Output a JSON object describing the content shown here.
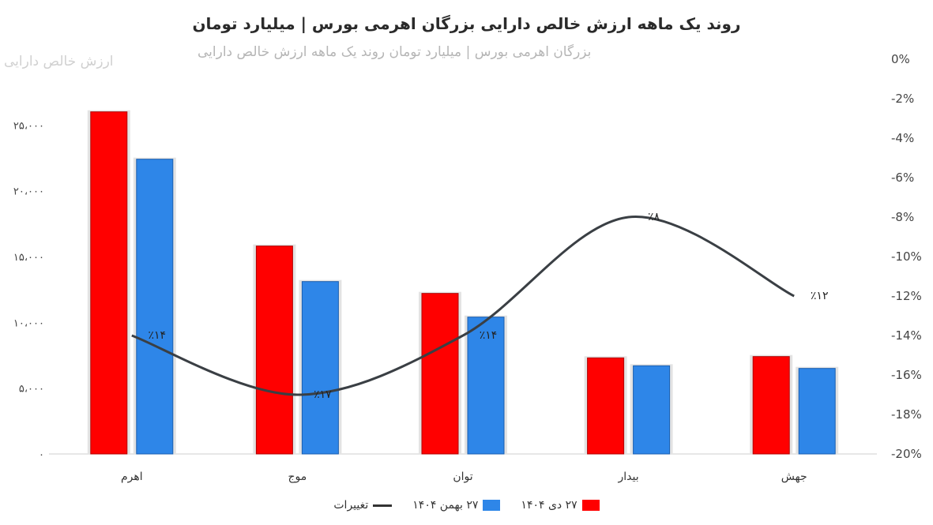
{
  "chart_data": {
    "type": "bar",
    "title": "روند یک ماهه ارزش خالص دارایی بزرگان اهرمی بورس | میلیارد تومان",
    "categories": [
      "اهرم",
      "موج",
      "توان",
      "بیدار",
      "جهش"
    ],
    "series": [
      {
        "name": "۲۷ دی ۱۴۰۴",
        "color": "#ff0000",
        "values": [
          26000,
          15800,
          12200,
          7300,
          7400
        ]
      },
      {
        "name": "۲۷ بهمن ۱۴۰۴",
        "color": "#2e86e8",
        "values": [
          22400,
          13100,
          10400,
          6700,
          6500
        ]
      }
    ],
    "line_series": {
      "name": "تغییرات",
      "color": "#3a3f44",
      "values": [
        -14,
        -17,
        -14,
        -8,
        -12
      ],
      "labels": [
        "٪۱۴",
        "٪۱۷",
        "٪۱۴",
        "٪۸",
        "٪۱۲"
      ]
    },
    "y_left": {
      "min": 0,
      "max": 30000,
      "ticks": [
        "۰",
        "۵،۰۰۰",
        "۱۰،۰۰۰",
        "۱۵،۰۰۰",
        "۲۰،۰۰۰",
        "۲۵،۰۰۰"
      ],
      "tick_values": [
        0,
        5000,
        10000,
        15000,
        20000,
        25000
      ]
    },
    "y_right": {
      "min": -20,
      "max": 0,
      "ticks": [
        "0%",
        "-2%",
        "-4%",
        "-6%",
        "-8%",
        "-10%",
        "-12%",
        "-14%",
        "-16%",
        "-18%",
        "-20%"
      ],
      "tick_values": [
        0,
        -2,
        -4,
        -6,
        -8,
        -10,
        -12,
        -14,
        -16,
        -18,
        -20
      ]
    },
    "grid": false,
    "legend_position": "bottom"
  },
  "ghost_text": {
    "line1": "بزرگان اهرمی بورس | میلیارد تومان روند یک ماهه ارزش خالص دارایی",
    "line2": "ارزش خالص دارایی"
  }
}
